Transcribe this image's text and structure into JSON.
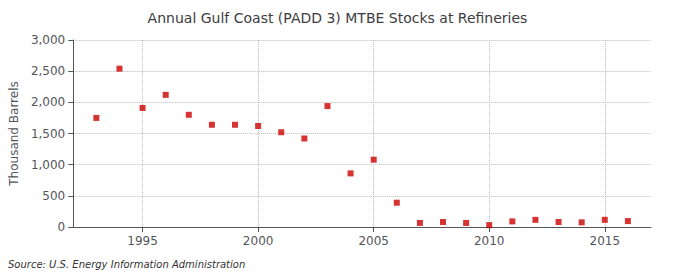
{
  "chart_data": {
    "type": "scatter",
    "title": "Annual Gulf Coast (PADD 3) MTBE Stocks at Refineries",
    "ylabel": "Thousand Barrels",
    "source": "Source: U.S. Energy Information Administration",
    "x": [
      1993,
      1994,
      1995,
      1996,
      1997,
      1998,
      1999,
      2000,
      2001,
      2002,
      2003,
      2004,
      2005,
      2006,
      2007,
      2008,
      2009,
      2010,
      2011,
      2012,
      2013,
      2014,
      2015,
      2016
    ],
    "values": [
      1750,
      2540,
      1910,
      2120,
      1800,
      1640,
      1640,
      1620,
      1520,
      1420,
      1940,
      860,
      1080,
      390,
      65,
      80,
      65,
      30,
      90,
      115,
      80,
      75,
      115,
      95
    ],
    "color": "#cc0000",
    "marker": "square",
    "xlim": [
      1992.0,
      2017.0
    ],
    "xticks": [
      1995,
      2000,
      2005,
      2010,
      2015
    ],
    "ylim": [
      0,
      3000
    ],
    "yticks": [
      0,
      500,
      {
        "value": 1000,
        "label": "1,000"
      },
      {
        "value": 1500,
        "label": "1,500"
      },
      {
        "value": 2000,
        "label": "2,000"
      },
      {
        "value": 2500,
        "label": "2,500"
      },
      {
        "value": 3000,
        "label": "3,000"
      }
    ],
    "grid": true
  }
}
